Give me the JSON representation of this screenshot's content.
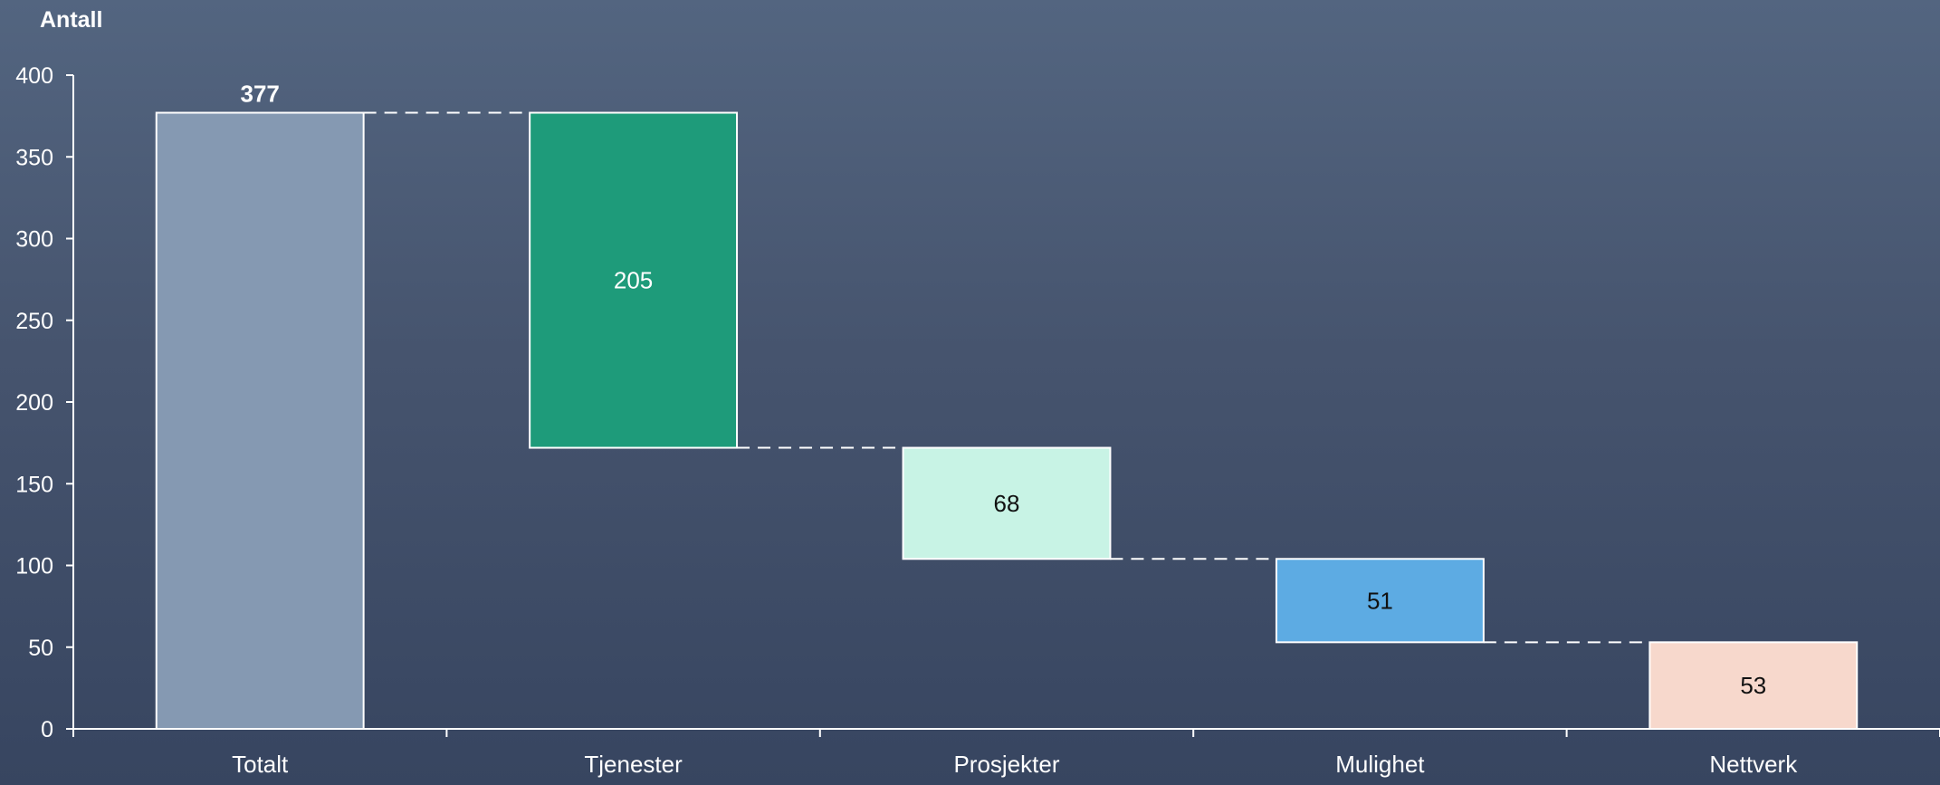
{
  "chart_data": {
    "type": "bar",
    "subtype": "waterfall",
    "title": "",
    "ylabel": "Antall",
    "xlabel": "",
    "ylim": [
      0,
      400
    ],
    "yticks": [
      0,
      50,
      100,
      150,
      200,
      250,
      300,
      350,
      400
    ],
    "grid": false,
    "categories": [
      "Totalt",
      "Tjenester",
      "Prosjekter",
      "Mulighet",
      "Nettverk"
    ],
    "values": [
      377,
      205,
      68,
      51,
      53
    ],
    "bars": [
      {
        "category": "Totalt",
        "value": 377,
        "base": 0,
        "color": "#8599b2",
        "label_color": "#ffffff",
        "label_bold": true,
        "label_position": "above"
      },
      {
        "category": "Tjenester",
        "value": 205,
        "base": 172,
        "color": "#1e9b7a",
        "label_color": "#ffffff",
        "label_bold": false,
        "label_position": "inside"
      },
      {
        "category": "Prosjekter",
        "value": 68,
        "base": 104,
        "color": "#c8f3e5",
        "label_color": "#111111",
        "label_bold": false,
        "label_position": "inside"
      },
      {
        "category": "Mulighet",
        "value": 51,
        "base": 53,
        "color": "#5dabe3",
        "label_color": "#111111",
        "label_bold": false,
        "label_position": "inside"
      },
      {
        "category": "Nettverk",
        "value": 53,
        "base": 0,
        "color": "#f7d8cc",
        "label_color": "#111111",
        "label_bold": false,
        "label_position": "inside"
      }
    ],
    "connectors": true
  }
}
